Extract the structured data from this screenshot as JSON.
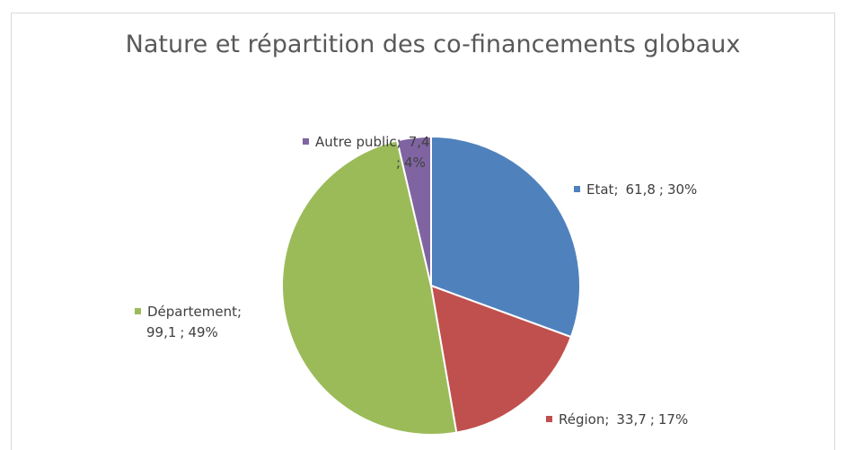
{
  "chart_data": {
    "type": "pie",
    "title": "Nature et répartition des co-financements globaux",
    "categories": [
      "Etat",
      "Région",
      "Département",
      "Autre public"
    ],
    "values": [
      61.8,
      33.7,
      99.1,
      7.4
    ],
    "value_labels": [
      "61,8",
      "33,7",
      "99,1",
      "7,4"
    ],
    "percents": [
      30,
      17,
      49,
      4
    ],
    "percent_labels": [
      "30%",
      "17%",
      "49%",
      "4%"
    ],
    "label_separator": ";",
    "colors": [
      "#4f81bd",
      "#c0504d",
      "#9bbb59",
      "#8064a2"
    ]
  }
}
